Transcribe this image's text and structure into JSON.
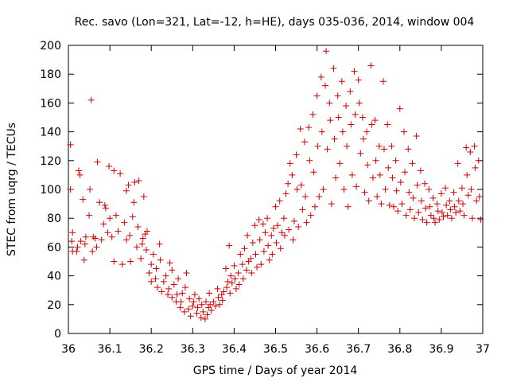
{
  "chart_data": {
    "type": "scatter",
    "title": "Rec. savo (Lon=321, Lat=-12, h=HE), days 035-036, 2014, window 004",
    "xlabel": "GPS time / Days of year 2014",
    "ylabel": "STEC from uqrg / TECUs",
    "xlim": [
      36,
      37
    ],
    "ylim": [
      0,
      200
    ],
    "x_ticks": [
      36,
      36.1,
      36.2,
      36.3,
      36.4,
      36.5,
      36.6,
      36.7,
      36.8,
      36.9,
      37
    ],
    "x_tick_labels": [
      "36",
      "36.1",
      "36.2",
      "36.3",
      "36.4",
      "36.5",
      "36.6",
      "36.7",
      "36.8",
      "36.9",
      "37"
    ],
    "y_ticks": [
      0,
      20,
      40,
      60,
      80,
      100,
      120,
      140,
      160,
      180,
      200
    ],
    "y_tick_labels": [
      "0",
      "20",
      "40",
      "60",
      "80",
      "100",
      "120",
      "140",
      "160",
      "180",
      "200"
    ],
    "marker": "+",
    "marker_color": "#cc0000",
    "grid": false,
    "series": [
      {
        "name": "STEC",
        "points": [
          [
            36.005,
            131
          ],
          [
            36.005,
            100
          ],
          [
            36.008,
            64
          ],
          [
            36.01,
            70
          ],
          [
            36.01,
            57
          ],
          [
            36.02,
            57
          ],
          [
            36.022,
            60
          ],
          [
            36.025,
            113
          ],
          [
            36.028,
            110
          ],
          [
            36.03,
            64
          ],
          [
            36.035,
            93
          ],
          [
            36.038,
            51
          ],
          [
            36.04,
            62
          ],
          [
            36.042,
            67
          ],
          [
            36.05,
            82
          ],
          [
            36.052,
            100
          ],
          [
            36.055,
            162
          ],
          [
            36.058,
            57
          ],
          [
            36.06,
            67
          ],
          [
            36.065,
            66
          ],
          [
            36.068,
            60
          ],
          [
            36.07,
            119
          ],
          [
            36.075,
            91
          ],
          [
            36.08,
            65
          ],
          [
            36.085,
            76
          ],
          [
            36.088,
            89
          ],
          [
            36.09,
            87
          ],
          [
            36.095,
            70
          ],
          [
            36.098,
            116
          ],
          [
            36.1,
            80
          ],
          [
            36.105,
            67
          ],
          [
            36.11,
            113
          ],
          [
            36.11,
            50
          ],
          [
            36.115,
            82
          ],
          [
            36.12,
            71
          ],
          [
            36.125,
            111
          ],
          [
            36.13,
            48
          ],
          [
            36.135,
            77
          ],
          [
            36.14,
            65
          ],
          [
            36.14,
            99
          ],
          [
            36.145,
            103
          ],
          [
            36.148,
            68
          ],
          [
            36.15,
            50
          ],
          [
            36.155,
            81
          ],
          [
            36.158,
            91
          ],
          [
            36.16,
            105
          ],
          [
            36.165,
            60
          ],
          [
            36.168,
            74
          ],
          [
            36.17,
            106
          ],
          [
            36.175,
            52
          ],
          [
            36.178,
            62
          ],
          [
            36.18,
            66
          ],
          [
            36.182,
            95
          ],
          [
            36.185,
            69
          ],
          [
            36.188,
            58
          ],
          [
            36.19,
            71
          ],
          [
            36.195,
            42
          ],
          [
            36.2,
            48
          ],
          [
            36.2,
            36
          ],
          [
            36.205,
            55
          ],
          [
            36.21,
            38
          ],
          [
            36.212,
            45
          ],
          [
            36.215,
            32
          ],
          [
            36.22,
            62
          ],
          [
            36.222,
            51
          ],
          [
            36.225,
            29
          ],
          [
            36.23,
            36
          ],
          [
            36.235,
            40
          ],
          [
            36.24,
            27
          ],
          [
            36.242,
            31
          ],
          [
            36.245,
            49
          ],
          [
            36.25,
            25
          ],
          [
            36.25,
            44
          ],
          [
            36.255,
            34
          ],
          [
            36.26,
            22
          ],
          [
            36.262,
            27
          ],
          [
            36.265,
            38
          ],
          [
            36.27,
            18
          ],
          [
            36.272,
            22
          ],
          [
            36.275,
            28
          ],
          [
            36.28,
            15
          ],
          [
            36.282,
            32
          ],
          [
            36.285,
            42
          ],
          [
            36.29,
            17
          ],
          [
            36.292,
            24
          ],
          [
            36.295,
            12
          ],
          [
            36.3,
            19
          ],
          [
            36.302,
            22
          ],
          [
            36.305,
            27
          ],
          [
            36.31,
            14
          ],
          [
            36.312,
            18
          ],
          [
            36.315,
            24
          ],
          [
            36.32,
            11
          ],
          [
            36.322,
            20
          ],
          [
            36.325,
            15
          ],
          [
            36.33,
            10
          ],
          [
            36.332,
            22
          ],
          [
            36.335,
            13
          ],
          [
            36.338,
            18
          ],
          [
            36.34,
            28
          ],
          [
            36.342,
            20
          ],
          [
            36.345,
            16
          ],
          [
            36.35,
            22
          ],
          [
            36.355,
            19
          ],
          [
            36.36,
            31
          ],
          [
            36.362,
            25
          ],
          [
            36.365,
            20
          ],
          [
            36.37,
            27
          ],
          [
            36.372,
            23
          ],
          [
            36.375,
            29
          ],
          [
            36.38,
            45
          ],
          [
            36.382,
            32
          ],
          [
            36.385,
            36
          ],
          [
            36.388,
            61
          ],
          [
            36.39,
            28
          ],
          [
            36.392,
            40
          ],
          [
            36.395,
            35
          ],
          [
            36.4,
            47
          ],
          [
            36.402,
            38
          ],
          [
            36.405,
            31
          ],
          [
            36.41,
            42
          ],
          [
            36.412,
            34
          ],
          [
            36.415,
            55
          ],
          [
            36.42,
            48
          ],
          [
            36.422,
            38
          ],
          [
            36.425,
            59
          ],
          [
            36.43,
            44
          ],
          [
            36.432,
            68
          ],
          [
            36.435,
            50
          ],
          [
            36.44,
            52
          ],
          [
            36.442,
            42
          ],
          [
            36.445,
            63
          ],
          [
            36.45,
            75
          ],
          [
            36.452,
            55
          ],
          [
            36.455,
            46
          ],
          [
            36.46,
            79
          ],
          [
            36.462,
            65
          ],
          [
            36.465,
            48
          ],
          [
            36.47,
            76
          ],
          [
            36.472,
            57
          ],
          [
            36.475,
            70
          ],
          [
            36.48,
            80
          ],
          [
            36.482,
            61
          ],
          [
            36.485,
            51
          ],
          [
            36.49,
            68
          ],
          [
            36.492,
            55
          ],
          [
            36.495,
            73
          ],
          [
            36.5,
            88
          ],
          [
            36.502,
            63
          ],
          [
            36.505,
            75
          ],
          [
            36.51,
            92
          ],
          [
            36.512,
            59
          ],
          [
            36.515,
            70
          ],
          [
            36.52,
            80
          ],
          [
            36.522,
            68
          ],
          [
            36.525,
            97
          ],
          [
            36.53,
            104
          ],
          [
            36.532,
            72
          ],
          [
            36.535,
            118
          ],
          [
            36.54,
            110
          ],
          [
            36.542,
            65
          ],
          [
            36.545,
            78
          ],
          [
            36.55,
            124
          ],
          [
            36.552,
            100
          ],
          [
            36.555,
            74
          ],
          [
            36.56,
            142
          ],
          [
            36.562,
            103
          ],
          [
            36.565,
            86
          ],
          [
            36.57,
            133
          ],
          [
            36.572,
            95
          ],
          [
            36.575,
            77
          ],
          [
            36.58,
            143
          ],
          [
            36.582,
            120
          ],
          [
            36.585,
            82
          ],
          [
            36.59,
            152
          ],
          [
            36.592,
            112
          ],
          [
            36.595,
            88
          ],
          [
            36.6,
            165
          ],
          [
            36.602,
            130
          ],
          [
            36.605,
            95
          ],
          [
            36.61,
            178
          ],
          [
            36.612,
            140
          ],
          [
            36.615,
            100
          ],
          [
            36.62,
            172
          ],
          [
            36.622,
            196
          ],
          [
            36.625,
            128
          ],
          [
            36.63,
            160
          ],
          [
            36.632,
            148
          ],
          [
            36.635,
            90
          ],
          [
            36.64,
            184
          ],
          [
            36.642,
            135
          ],
          [
            36.645,
            108
          ],
          [
            36.65,
            165
          ],
          [
            36.652,
            150
          ],
          [
            36.655,
            118
          ],
          [
            36.66,
            175
          ],
          [
            36.662,
            140
          ],
          [
            36.665,
            100
          ],
          [
            36.67,
            158
          ],
          [
            36.672,
            130
          ],
          [
            36.675,
            88
          ],
          [
            36.68,
            168
          ],
          [
            36.682,
            145
          ],
          [
            36.685,
            110
          ],
          [
            36.69,
            182
          ],
          [
            36.692,
            152
          ],
          [
            36.695,
            102
          ],
          [
            36.7,
            176
          ],
          [
            36.702,
            160
          ],
          [
            36.705,
            125
          ],
          [
            36.71,
            150
          ],
          [
            36.712,
            135
          ],
          [
            36.715,
            98
          ],
          [
            36.72,
            140
          ],
          [
            36.722,
            117
          ],
          [
            36.725,
            92
          ],
          [
            36.73,
            186
          ],
          [
            36.732,
            145
          ],
          [
            36.735,
            108
          ],
          [
            36.74,
            148
          ],
          [
            36.742,
            120
          ],
          [
            36.745,
            95
          ],
          [
            36.75,
            130
          ],
          [
            36.752,
            110
          ],
          [
            36.755,
            90
          ],
          [
            36.76,
            175
          ],
          [
            36.762,
            128
          ],
          [
            36.765,
            100
          ],
          [
            36.77,
            145
          ],
          [
            36.772,
            115
          ],
          [
            36.775,
            89
          ],
          [
            36.78,
            130
          ],
          [
            36.782,
            108
          ],
          [
            36.785,
            88
          ],
          [
            36.79,
            120
          ],
          [
            36.792,
            99
          ],
          [
            36.795,
            85
          ],
          [
            36.8,
            156
          ],
          [
            36.802,
            105
          ],
          [
            36.805,
            90
          ],
          [
            36.81,
            140
          ],
          [
            36.812,
            112
          ],
          [
            36.815,
            82
          ],
          [
            36.82,
            128
          ],
          [
            36.822,
            98
          ],
          [
            36.825,
            86
          ],
          [
            36.83,
            118
          ],
          [
            36.832,
            94
          ],
          [
            36.835,
            80
          ],
          [
            36.84,
            137
          ],
          [
            36.842,
            103
          ],
          [
            36.845,
            84
          ],
          [
            36.85,
            113
          ],
          [
            36.852,
            92
          ],
          [
            36.855,
            79
          ],
          [
            36.86,
            104
          ],
          [
            36.862,
            87
          ],
          [
            36.865,
            77
          ],
          [
            36.87,
            100
          ],
          [
            36.872,
            88
          ],
          [
            36.875,
            82
          ],
          [
            36.88,
            94
          ],
          [
            36.882,
            80
          ],
          [
            36.885,
            77
          ],
          [
            36.89,
            90
          ],
          [
            36.892,
            85
          ],
          [
            36.895,
            79
          ],
          [
            36.9,
            97
          ],
          [
            36.902,
            84
          ],
          [
            36.905,
            81
          ],
          [
            36.91,
            101
          ],
          [
            36.912,
            89
          ],
          [
            36.915,
            82
          ],
          [
            36.92,
            92
          ],
          [
            36.922,
            86
          ],
          [
            36.925,
            80
          ],
          [
            36.93,
            98
          ],
          [
            36.932,
            88
          ],
          [
            36.935,
            84
          ],
          [
            36.94,
            118
          ],
          [
            36.942,
            92
          ],
          [
            36.945,
            85
          ],
          [
            36.95,
            101
          ],
          [
            36.952,
            90
          ],
          [
            36.955,
            82
          ],
          [
            36.96,
            129
          ],
          [
            36.962,
            110
          ],
          [
            36.965,
            96
          ],
          [
            36.97,
            126
          ],
          [
            36.972,
            100
          ],
          [
            36.975,
            80
          ],
          [
            36.98,
            130
          ],
          [
            36.982,
            115
          ],
          [
            36.985,
            92
          ],
          [
            36.99,
            120
          ],
          [
            36.992,
            95
          ],
          [
            36.995,
            79
          ]
        ]
      }
    ]
  }
}
